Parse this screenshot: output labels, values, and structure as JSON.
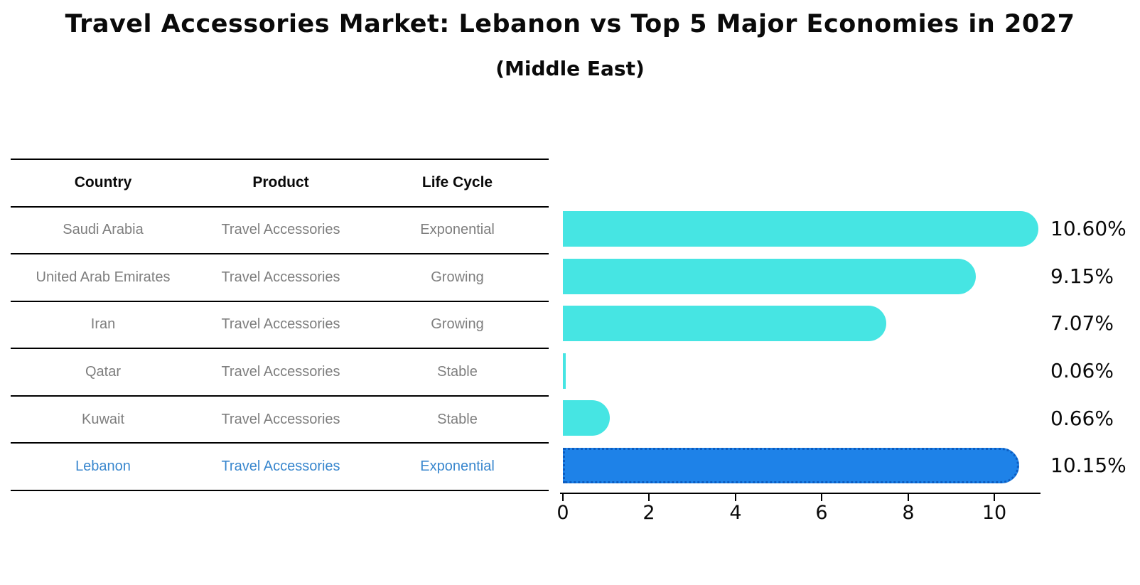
{
  "title": "Travel Accessories Market: Lebanon vs Top 5 Major Economies in 2027",
  "subtitle": "(Middle East)",
  "table": {
    "headers": [
      "Country",
      "Product",
      "Life Cycle"
    ],
    "rows": [
      {
        "country": "Saudi Arabia",
        "product": "Travel Accessories",
        "life_cycle": "Exponential",
        "highlight": false
      },
      {
        "country": "United Arab Emirates",
        "product": "Travel Accessories",
        "life_cycle": "Growing",
        "highlight": false
      },
      {
        "country": "Iran",
        "product": "Travel Accessories",
        "life_cycle": "Growing",
        "highlight": false
      },
      {
        "country": "Qatar",
        "product": "Travel Accessories",
        "life_cycle": "Stable",
        "highlight": false
      },
      {
        "country": "Kuwait",
        "product": "Travel Accessories",
        "life_cycle": "Stable",
        "highlight": false
      },
      {
        "country": "Lebanon",
        "product": "Travel Accessories",
        "life_cycle": "Exponential",
        "highlight": true
      }
    ]
  },
  "chart_data": {
    "type": "bar",
    "orientation": "horizontal",
    "title": "Travel Accessories Market: Lebanon vs Top 5 Major Economies in 2027",
    "subtitle": "(Middle East)",
    "categories": [
      "Saudi Arabia",
      "United Arab Emirates",
      "Iran",
      "Qatar",
      "Kuwait",
      "Lebanon"
    ],
    "values": [
      10.6,
      9.15,
      7.07,
      0.06,
      0.66,
      10.15
    ],
    "labels": [
      "10.60%",
      "9.15%",
      "7.07%",
      "0.06%",
      "0.66%",
      "10.15%"
    ],
    "xlabel": "",
    "ylabel": "",
    "xticks": [
      "0",
      "2",
      "4",
      "6",
      "8",
      "10"
    ],
    "xlim": [
      0,
      10.8
    ],
    "grid": false,
    "legend": "none",
    "highlight_index": 5
  },
  "colors": {
    "bar": "#46e5e3",
    "highlight_bar": "#1e82e8",
    "highlight_edge": "#0c5cc0",
    "highlight_text": "#3987ce",
    "table_text": "#7e7e7e",
    "axis": "#000000"
  }
}
